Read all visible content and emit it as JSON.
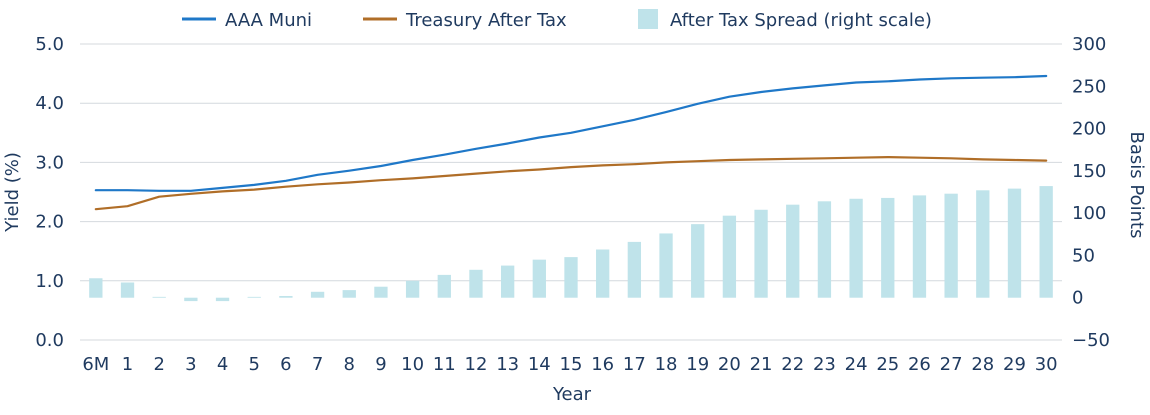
{
  "chart_data": {
    "type": "bar+line",
    "categories": [
      "6M",
      "1",
      "2",
      "3",
      "4",
      "5",
      "6",
      "7",
      "8",
      "9",
      "10",
      "11",
      "12",
      "13",
      "14",
      "15",
      "16",
      "17",
      "18",
      "19",
      "20",
      "21",
      "22",
      "23",
      "24",
      "25",
      "26",
      "27",
      "28",
      "29",
      "30"
    ],
    "series": [
      {
        "name": "AAA Muni",
        "type": "line",
        "axis": "left",
        "color": "#1f78c8",
        "values": [
          2.53,
          2.53,
          2.52,
          2.52,
          2.57,
          2.62,
          2.69,
          2.79,
          2.86,
          2.94,
          3.04,
          3.13,
          3.23,
          3.32,
          3.42,
          3.5,
          3.61,
          3.72,
          3.85,
          3.99,
          4.11,
          4.19,
          4.25,
          4.3,
          4.35,
          4.37,
          4.4,
          4.42,
          4.43,
          4.44,
          4.46
        ]
      },
      {
        "name": "Treasury After Tax",
        "type": "line",
        "axis": "left",
        "color": "#b06e28",
        "values": [
          2.21,
          2.26,
          2.42,
          2.47,
          2.51,
          2.54,
          2.59,
          2.63,
          2.66,
          2.7,
          2.73,
          2.77,
          2.81,
          2.85,
          2.88,
          2.92,
          2.95,
          2.97,
          3.0,
          3.02,
          3.04,
          3.05,
          3.06,
          3.07,
          3.08,
          3.09,
          3.08,
          3.07,
          3.05,
          3.04,
          3.03
        ]
      },
      {
        "name": "After Tax Spread (right scale)",
        "type": "bar",
        "axis": "right",
        "color": "#bfe3ea",
        "values": [
          23,
          18,
          1,
          -4,
          -4,
          1,
          2,
          7,
          9,
          13,
          20,
          27,
          33,
          38,
          45,
          48,
          57,
          66,
          76,
          87,
          97,
          104,
          110,
          114,
          117,
          118,
          121,
          123,
          127,
          129,
          132
        ]
      }
    ],
    "ylabel": "Yield (%)",
    "y2label": "Basis Points",
    "xlabel": "Year",
    "ylim": [
      0,
      5
    ],
    "y2lim": [
      -50,
      300
    ],
    "yticks": [
      "0.0",
      "1.0",
      "2.0",
      "3.0",
      "4.0",
      "5.0"
    ],
    "y2ticks": [
      "−50",
      "0",
      "50",
      "100",
      "150",
      "200",
      "250",
      "300"
    ],
    "grid": true,
    "legend_position": "top"
  }
}
